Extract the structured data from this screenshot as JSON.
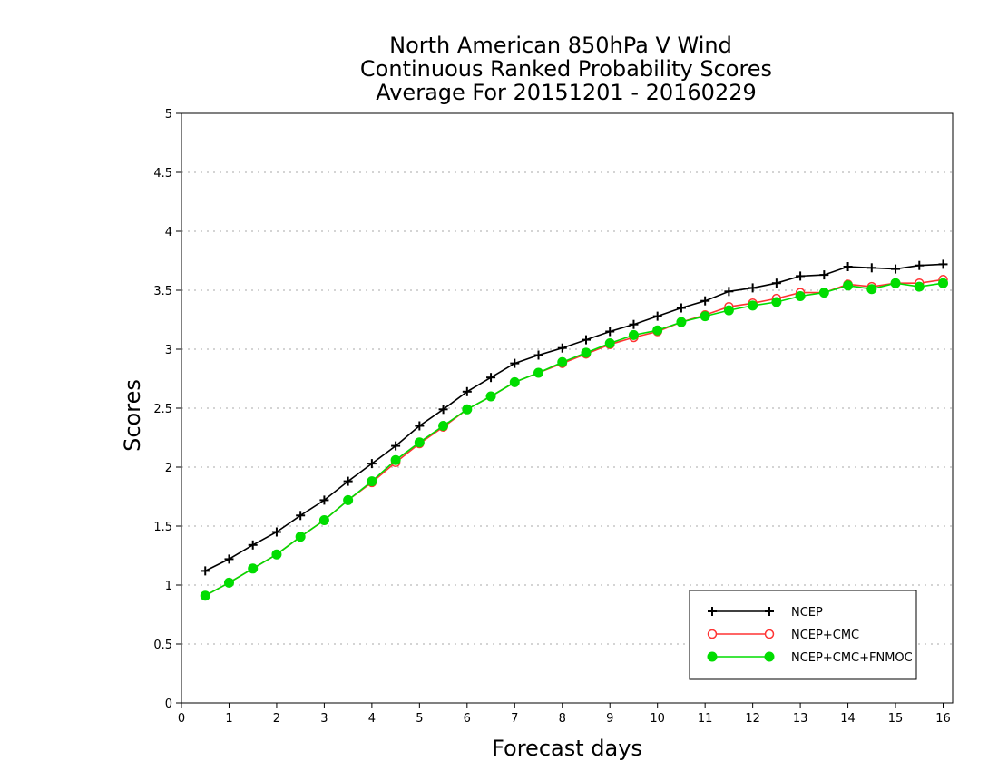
{
  "chart_data": {
    "type": "line",
    "title": [
      "North American 850hPa V Wind",
      "Continuous Ranked Probability Scores",
      "Average For 20151201 - 20160229"
    ],
    "xlabel": "Forecast days",
    "ylabel": "Scores",
    "xlim": [
      0,
      16.2
    ],
    "ylim": [
      0,
      5
    ],
    "xticks": [
      0,
      1,
      2,
      3,
      4,
      5,
      6,
      7,
      8,
      9,
      10,
      11,
      12,
      13,
      14,
      15,
      16
    ],
    "yticks": [
      0,
      0.5,
      1,
      1.5,
      2,
      2.5,
      3,
      3.5,
      4,
      4.5,
      5
    ],
    "ytick_labels": [
      "0",
      "0.5",
      "1",
      "1.5",
      "2",
      "2.5",
      "3",
      "3.5",
      "4",
      "4.5",
      "5"
    ],
    "grid": "horizontal dotted",
    "legend_position": "bottom-right",
    "x": [
      0.5,
      1,
      1.5,
      2,
      2.5,
      3,
      3.5,
      4,
      4.5,
      5,
      5.5,
      6,
      6.5,
      7,
      7.5,
      8,
      8.5,
      9,
      9.5,
      10,
      10.5,
      11,
      11.5,
      12,
      12.5,
      13,
      13.5,
      14,
      14.5,
      15,
      15.5,
      16
    ],
    "series": [
      {
        "name": "NCEP",
        "color": "#000000",
        "marker": "plus",
        "values": [
          1.12,
          1.22,
          1.34,
          1.45,
          1.59,
          1.72,
          1.88,
          2.03,
          2.18,
          2.35,
          2.49,
          2.64,
          2.76,
          2.88,
          2.95,
          3.01,
          3.08,
          3.15,
          3.21,
          3.28,
          3.35,
          3.41,
          3.49,
          3.52,
          3.56,
          3.62,
          3.63,
          3.7,
          3.69,
          3.68,
          3.71,
          3.72
        ]
      },
      {
        "name": "NCEP+CMC",
        "color": "#ff3333",
        "marker": "open-circle",
        "values": [
          0.91,
          1.02,
          1.14,
          1.26,
          1.41,
          1.55,
          1.72,
          1.87,
          2.04,
          2.2,
          2.34,
          2.49,
          2.6,
          2.72,
          2.8,
          2.88,
          2.96,
          3.04,
          3.1,
          3.15,
          3.23,
          3.29,
          3.36,
          3.39,
          3.43,
          3.48,
          3.48,
          3.55,
          3.53,
          3.56,
          3.56,
          3.59
        ]
      },
      {
        "name": "NCEP+CMC+FNMOC",
        "color": "#00dd00",
        "marker": "filled-circle",
        "values": [
          0.91,
          1.02,
          1.14,
          1.26,
          1.41,
          1.55,
          1.72,
          1.88,
          2.06,
          2.21,
          2.35,
          2.49,
          2.6,
          2.72,
          2.8,
          2.89,
          2.97,
          3.05,
          3.12,
          3.16,
          3.23,
          3.28,
          3.33,
          3.37,
          3.4,
          3.45,
          3.48,
          3.54,
          3.51,
          3.56,
          3.53,
          3.56
        ]
      }
    ]
  }
}
